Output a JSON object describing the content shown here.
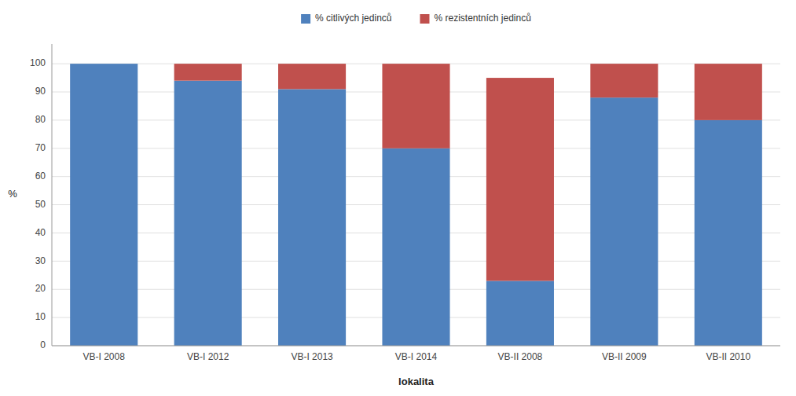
{
  "chart_data": {
    "type": "bar",
    "stacked": true,
    "categories": [
      "VB-I 2008",
      "VB-I 2012",
      "VB-I 2013",
      "VB-I 2014",
      "VB-II 2008",
      "VB-II 2009",
      "VB-II 2010"
    ],
    "series": [
      {
        "name": "% citlivých jedinců",
        "color": "#4F81BD",
        "values": [
          100,
          94,
          91,
          70,
          23,
          88,
          80
        ]
      },
      {
        "name": "% rezistentních jedinců",
        "color": "#C0504D",
        "values": [
          0,
          6,
          9,
          30,
          72,
          12,
          20
        ]
      }
    ],
    "xlabel": "lokalita",
    "ylabel": "%",
    "ylim": [
      0,
      107
    ],
    "yticks": [
      0,
      10,
      20,
      30,
      40,
      50,
      60,
      70,
      80,
      90,
      100
    ],
    "grid": true,
    "legend": "top"
  }
}
